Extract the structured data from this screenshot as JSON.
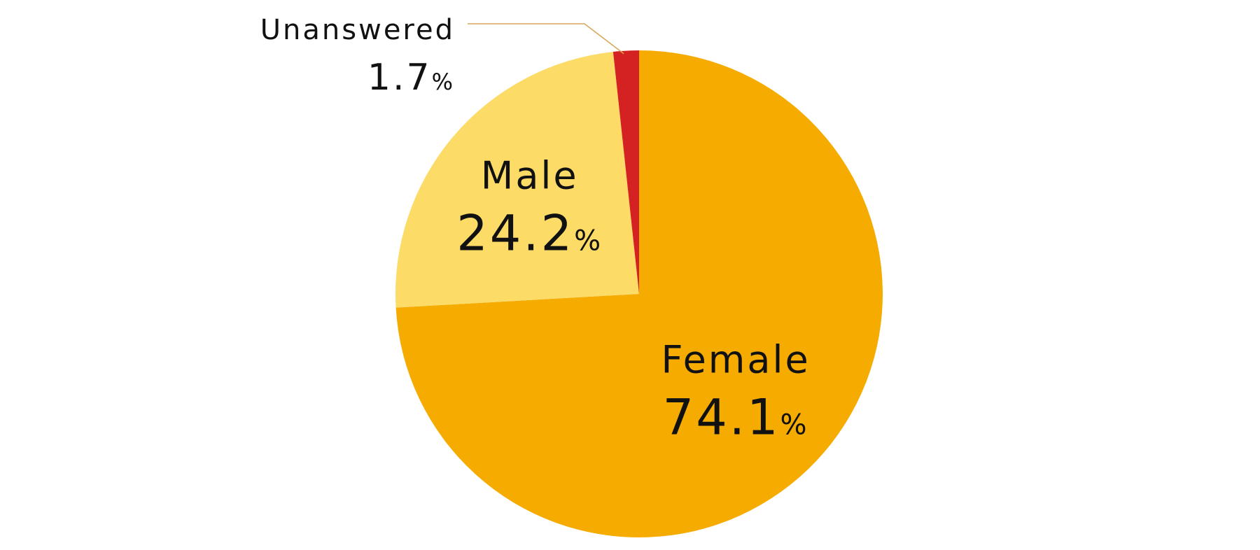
{
  "chart_data": {
    "type": "pie",
    "title": "",
    "slices": [
      {
        "label": "Female",
        "value": 74.1,
        "display": "74.1",
        "unit": "%",
        "color": "#F5AB00"
      },
      {
        "label": "Male",
        "value": 24.2,
        "display": "24.2",
        "unit": "%",
        "color": "#FDDB67"
      },
      {
        "label": "Unanswered",
        "value": 1.7,
        "display": "1.7",
        "unit": "%",
        "color": "#D42222"
      }
    ],
    "start_angle": "12 o'clock",
    "direction": "clockwise",
    "label_placement": "inside (Unanswered outside with leader line)",
    "leader_line_color": "#D9A75A",
    "legend": "none"
  }
}
